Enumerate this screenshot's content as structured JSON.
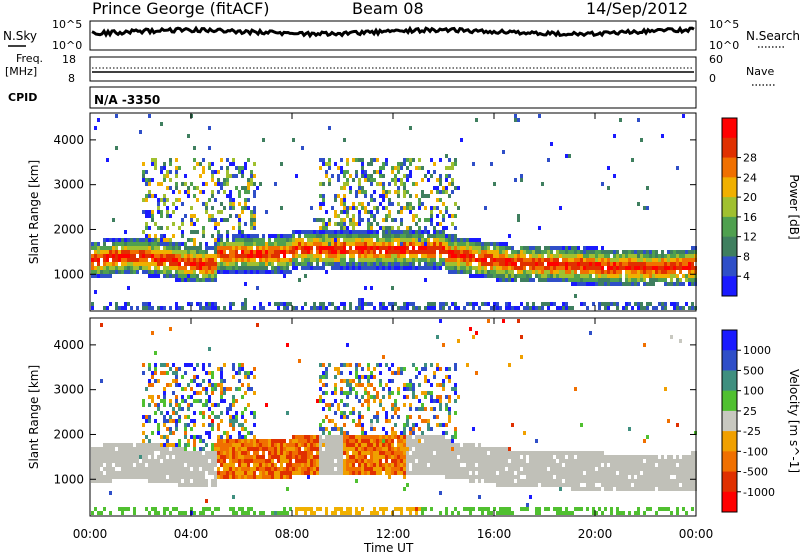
{
  "header": {
    "site": "Prince George (fitACF)",
    "beam": "Beam 08",
    "date": "14/Sep/2012"
  },
  "top_panels": {
    "nsky_label": "N.Sky",
    "nsky_ticks": [
      "10^5",
      "10^0"
    ],
    "nsearch_label": "N.Search",
    "nsearch_ticks": [
      "10^5",
      "10^0"
    ],
    "freq_label": "Freq.",
    "freq_unit": "[MHz]",
    "freq_ticks": [
      "18",
      "8"
    ],
    "nave_label": "Nave",
    "nave_ticks": [
      "60",
      "0"
    ],
    "cpid_label": "CPID",
    "cpid_value": "N/A -3350"
  },
  "colors": {
    "power_scale": [
      "#1a1aff",
      "#2f4fc8",
      "#3f7f5f",
      "#4fa04f",
      "#a0c030",
      "#f0b000",
      "#f07000",
      "#e03000",
      "#ff0000"
    ],
    "velocity_scale": [
      "#1a1aff",
      "#2f4fc8",
      "#3f8f7f",
      "#50c030",
      "#c8c8c0",
      "#f0a000",
      "#f07000",
      "#e03000",
      "#ff0000"
    ],
    "ground_scatter": "#c0c0b8"
  },
  "chart_data": [
    {
      "type": "heatmap",
      "title": "Power",
      "ylabel": "Slant Range [km]",
      "xlabel": "Time UT",
      "x_ticks": [
        "00:00",
        "04:00",
        "08:00",
        "12:00",
        "16:00",
        "20:00",
        "00:00"
      ],
      "x_hours": [
        0,
        4,
        8,
        12,
        16,
        20,
        24
      ],
      "y_ticks": [
        1000,
        2000,
        3000,
        4000
      ],
      "ylim": [
        180,
        4600
      ],
      "colorbar_label": "Power [dB]",
      "colorbar_ticks": [
        "4",
        "8",
        "12",
        "16",
        "20",
        "24",
        "28"
      ]
    },
    {
      "type": "heatmap",
      "title": "Velocity",
      "ylabel": "Slant Range [km]",
      "xlabel": "Time UT",
      "x_ticks": [
        "00:00",
        "04:00",
        "08:00",
        "12:00",
        "16:00",
        "20:00",
        "00:00"
      ],
      "x_hours": [
        0,
        4,
        8,
        12,
        16,
        20,
        24
      ],
      "y_ticks": [
        1000,
        2000,
        3000,
        4000
      ],
      "ylim": [
        180,
        4600
      ],
      "colorbar_label": "Velocity [m s^-1]",
      "colorbar_ticks": [
        "1000",
        "500",
        "100",
        "25",
        "-25",
        "-100",
        "-500",
        "-1000"
      ]
    }
  ]
}
